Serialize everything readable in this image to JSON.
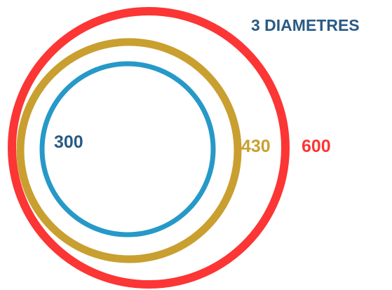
{
  "title": "3 DIAMETRES",
  "circles": [
    {
      "label": "600",
      "color": "#fc3535"
    },
    {
      "label": "430",
      "color": "#c99f30"
    },
    {
      "label": "300",
      "color": "#2699c8"
    }
  ],
  "colors": {
    "title": "#2a5a84",
    "label_300": "#2a5a84",
    "label_430": "#c99f30",
    "label_600": "#fc3535"
  }
}
